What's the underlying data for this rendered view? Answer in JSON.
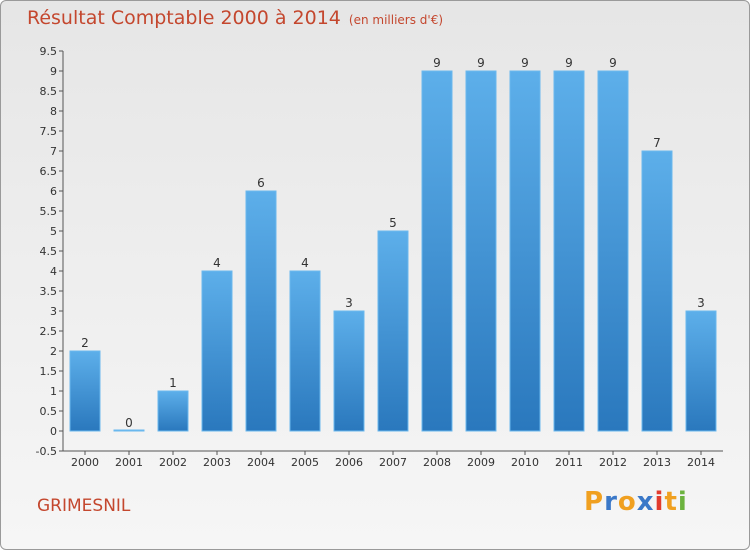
{
  "chart_data": {
    "type": "bar",
    "title": "Résultat Comptable 2000 à 2014",
    "subtitle": "(en milliers d'€)",
    "categories": [
      "2000",
      "2001",
      "2002",
      "2003",
      "2004",
      "2005",
      "2006",
      "2007",
      "2008",
      "2009",
      "2010",
      "2011",
      "2012",
      "2013",
      "2014"
    ],
    "values": [
      2,
      0,
      1,
      4,
      6,
      4,
      3,
      5,
      9,
      9,
      9,
      9,
      9,
      7,
      3
    ],
    "ylim": [
      -0.5,
      9.5
    ],
    "yticks": [
      "9.5",
      "9",
      "8.5",
      "8",
      "7.5",
      "7",
      "6.5",
      "6",
      "5.5",
      "5",
      "4.5",
      "4",
      "3.5",
      "3",
      "2.5",
      "2",
      "1.5",
      "1",
      "0.5",
      "0",
      "-0.5"
    ],
    "grid": false,
    "bar_color": "#3d8fd8",
    "xlabel": "",
    "ylabel": ""
  },
  "footer": {
    "commune": "GRIMESNIL",
    "logo_letters": [
      "P",
      "r",
      "o",
      "x",
      "i",
      "t",
      "i"
    ],
    "logo_colors": [
      "#f0a020",
      "#3a78c8",
      "#f0a020",
      "#3a78c8",
      "#e23b2d",
      "#f0a020",
      "#6cb33f"
    ]
  }
}
